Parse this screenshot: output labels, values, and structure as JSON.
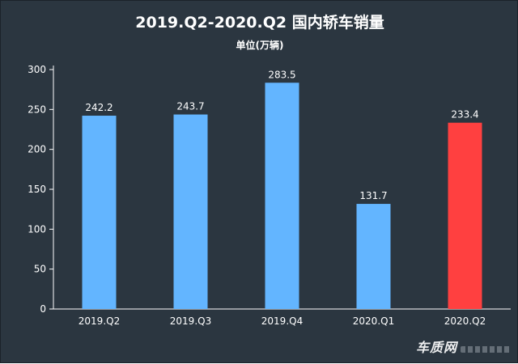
{
  "chart_data": {
    "type": "bar",
    "title": "2019.Q2-2020.Q2 国内轿车销量",
    "subtitle": "单位(万辆)",
    "xlabel": "",
    "ylabel": "",
    "categories": [
      "2019.Q2",
      "2019.Q3",
      "2019.Q4",
      "2020.Q1",
      "2020.Q2"
    ],
    "values": [
      242.2,
      243.7,
      283.5,
      131.7,
      233.4
    ],
    "data_labels": [
      "242.2",
      "243.7",
      "283.5",
      "131.7",
      "233.4"
    ],
    "ylim": [
      0,
      300
    ],
    "yticks": [
      0,
      50,
      100,
      150,
      200,
      250,
      300
    ],
    "grid": false,
    "legend": "none",
    "colors": {
      "background": "#2b3640",
      "bar": "#63b5ff",
      "highlight_bar": "#ff4040",
      "text": "#ffffff",
      "axis": "#ffffff"
    },
    "highlight_index": 4
  },
  "watermark": {
    "text": "车质网"
  }
}
